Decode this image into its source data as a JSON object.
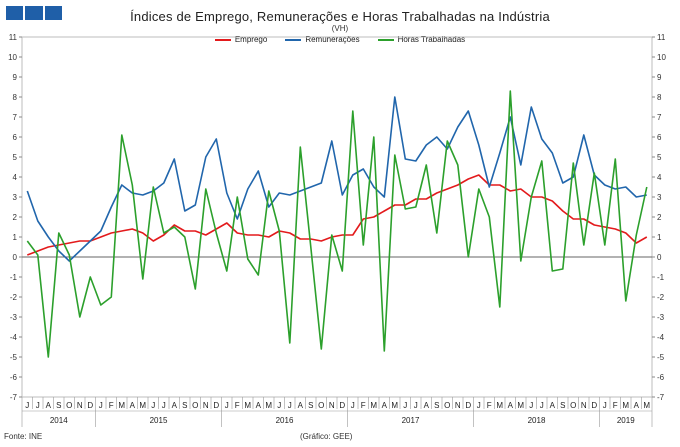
{
  "chart_data": {
    "type": "line",
    "title": "Índices de Emprego,  Remunerações e Horas Trabalhadas na Indústria",
    "subtitle": "(VH)",
    "ylim": [
      -7,
      11
    ],
    "yticks": [
      11,
      10,
      9,
      8,
      7,
      6,
      5,
      4,
      3,
      2,
      1,
      0,
      -1,
      -2,
      -3,
      -4,
      -5,
      -6,
      -7
    ],
    "grid": false,
    "legend_position": "top-center",
    "month_labels": [
      "J",
      "J",
      "A",
      "S",
      "O",
      "N",
      "D",
      "J",
      "F",
      "M",
      "A",
      "M",
      "J",
      "J",
      "A",
      "S",
      "O",
      "N",
      "D",
      "J",
      "F",
      "M",
      "A",
      "M",
      "J",
      "J",
      "A",
      "S",
      "O",
      "N",
      "D",
      "J",
      "F",
      "M",
      "A",
      "M",
      "J",
      "J",
      "A",
      "S",
      "O",
      "N",
      "D",
      "J",
      "F",
      "M",
      "A",
      "M",
      "J",
      "J",
      "A",
      "S",
      "O",
      "N",
      "D",
      "J",
      "F",
      "M",
      "A",
      "M"
    ],
    "year_labels": [
      {
        "label": "2014",
        "start": 0,
        "end": 6
      },
      {
        "label": "2015",
        "start": 7,
        "end": 18
      },
      {
        "label": "2016",
        "start": 19,
        "end": 30
      },
      {
        "label": "2017",
        "start": 31,
        "end": 42
      },
      {
        "label": "2018",
        "start": 43,
        "end": 54
      },
      {
        "label": "2019",
        "start": 55,
        "end": 59
      }
    ],
    "series": [
      {
        "name": "Emprego",
        "color": "#e31a1c",
        "values": [
          0.1,
          0.3,
          0.5,
          0.6,
          0.7,
          0.8,
          0.8,
          1.0,
          1.2,
          1.3,
          1.4,
          1.2,
          0.8,
          1.1,
          1.6,
          1.3,
          1.3,
          1.1,
          1.4,
          1.7,
          1.2,
          1.1,
          1.1,
          1.0,
          1.3,
          1.2,
          0.9,
          0.9,
          0.8,
          1.0,
          1.1,
          1.1,
          1.9,
          2.0,
          2.3,
          2.6,
          2.6,
          2.9,
          2.9,
          3.2,
          3.4,
          3.6,
          3.9,
          4.1,
          3.6,
          3.6,
          3.3,
          3.4,
          3.0,
          3.0,
          2.8,
          2.3,
          1.9,
          1.9,
          1.6,
          1.5,
          1.4,
          1.2,
          0.7,
          1.0
        ]
      },
      {
        "name": "Remunerações",
        "color": "#2166ac",
        "values": [
          3.3,
          1.8,
          1.0,
          0.3,
          -0.2,
          0.3,
          0.8,
          1.3,
          2.5,
          3.6,
          3.2,
          3.1,
          3.3,
          3.7,
          4.9,
          2.3,
          2.6,
          5.0,
          5.9,
          3.2,
          1.9,
          3.4,
          4.3,
          2.5,
          3.2,
          3.1,
          3.3,
          3.5,
          3.7,
          5.8,
          3.1,
          4.1,
          4.4,
          3.5,
          3.0,
          8.0,
          4.9,
          4.8,
          5.6,
          6.0,
          5.4,
          6.5,
          7.3,
          5.6,
          3.5,
          5.2,
          7.0,
          4.6,
          7.5,
          5.9,
          5.2,
          3.7,
          4.0,
          6.1,
          4.1,
          3.6,
          3.4,
          3.5,
          3.0,
          3.1
        ]
      },
      {
        "name": "Horas Trabalhadas",
        "color": "#2ca02c",
        "values": [
          0.8,
          0.1,
          -5.0,
          1.2,
          0.1,
          -3.0,
          -1.0,
          -2.4,
          -2.0,
          6.1,
          3.6,
          -1.1,
          3.5,
          1.2,
          1.5,
          1.0,
          -1.6,
          3.4,
          1.2,
          -0.7,
          3.0,
          -0.1,
          -0.9,
          3.3,
          1.3,
          -4.3,
          5.5,
          0.5,
          -4.6,
          1.1,
          -0.7,
          7.3,
          0.6,
          6.0,
          -4.7,
          5.1,
          2.4,
          2.5,
          4.6,
          1.2,
          5.8,
          4.6,
          0.0,
          3.4,
          2.0,
          -2.5,
          8.3,
          -0.2,
          3.0,
          4.8,
          -0.7,
          -0.6,
          4.7,
          0.6,
          4.2,
          0.6,
          4.9,
          -2.2,
          1.1,
          3.5
        ]
      }
    ],
    "footer_source": "Fonte: INE",
    "footer_credit": "(Gráfico: GEE)"
  }
}
